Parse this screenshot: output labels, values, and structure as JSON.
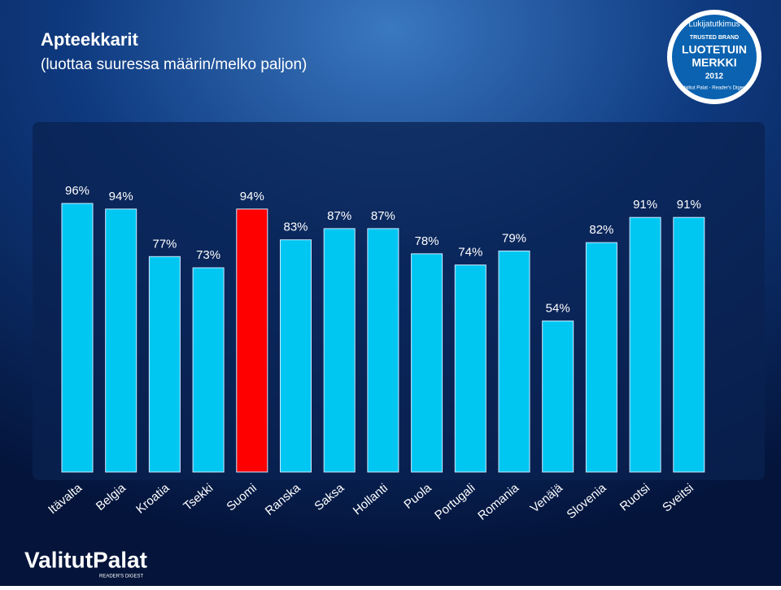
{
  "chart_data": {
    "type": "bar",
    "title": "Apteekkarit",
    "subtitle": "(luottaa suuressa määrin/melko paljon)",
    "categories": [
      "Itävalta",
      "Belgia",
      "Kroatia",
      "Tsekki",
      "Suomi",
      "Ranska",
      "Saksa",
      "Hollanti",
      "Puola",
      "Portugali",
      "Romania",
      "Venäjä",
      "Slovenia",
      "Ruotsi",
      "Sveitsi"
    ],
    "values": [
      96,
      94,
      77,
      73,
      94,
      83,
      87,
      87,
      78,
      74,
      79,
      54,
      82,
      91,
      91
    ],
    "value_labels": [
      "96%",
      "94%",
      "77%",
      "73%",
      "94%",
      "83%",
      "87%",
      "87%",
      "78%",
      "74%",
      "79%",
      "54%",
      "82%",
      "91%",
      "91%"
    ],
    "colors": [
      "#00c6f2",
      "#00c6f2",
      "#00c6f2",
      "#00c6f2",
      "#ff0000",
      "#00c6f2",
      "#00c6f2",
      "#00c6f2",
      "#00c6f2",
      "#00c6f2",
      "#00c6f2",
      "#00c6f2",
      "#00c6f2",
      "#00c6f2",
      "#00c6f2"
    ]
  },
  "badge": {
    "top": "Lukijatutkimus",
    "brand": "TRUSTED BRAND",
    "line1": "LUOTETUIN",
    "line2": "MERKKI",
    "year": "2012",
    "ring": "Valitut Palat - Reader's Digest"
  },
  "logo": {
    "name": "ValitutPalat",
    "sub": "READER'S DIGEST"
  }
}
